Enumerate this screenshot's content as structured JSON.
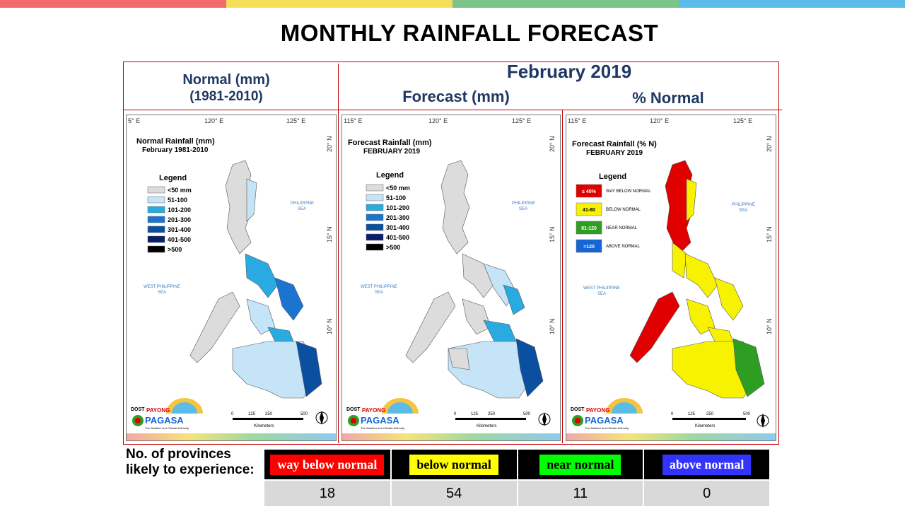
{
  "header": {
    "title": "MONTHLY RAINFALL FORECAST"
  },
  "colors": {
    "top_bar": [
      "#f26b6b",
      "#f5de5a",
      "#7cc48a",
      "#5dbbe8"
    ],
    "frame": "#c00000",
    "heading": "#1f3864"
  },
  "columns": {
    "normal_heading": "Normal (mm)",
    "normal_period": "(1981-2010)",
    "month": "February 2019",
    "forecast_heading": "Forecast (mm)",
    "percent_heading": "% Normal"
  },
  "maps": {
    "normal": {
      "title": "Normal Rainfall (mm)",
      "subtitle": "February 1981-2010",
      "lon_labels": [
        "5° E",
        "120° E",
        "125° E"
      ],
      "lat_labels": [
        "20° N",
        "15° N",
        "10° N"
      ],
      "legend_title": "Legend",
      "legend": [
        {
          "label": "<50 mm",
          "color": "#dcdcdc"
        },
        {
          "label": "51-100",
          "color": "#c5e4f7"
        },
        {
          "label": "101-200",
          "color": "#29abe2"
        },
        {
          "label": "201-300",
          "color": "#1b75d0"
        },
        {
          "label": "301-400",
          "color": "#0b4fa0"
        },
        {
          "label": "401-500",
          "color": "#0a1f6b"
        },
        {
          "label": ">500",
          "color": "#000000"
        }
      ],
      "sea_1": "PHILIPPINE",
      "sea_1b": "SEA",
      "sea_2": "WEST PHILIPPINE",
      "sea_2b": "SEA",
      "scale_ticks": [
        "0",
        "125",
        "250",
        "500"
      ],
      "scale_unit": "Kilometers"
    },
    "forecast": {
      "title": "Forecast Rainfall (mm)",
      "subtitle": "FEBRUARY 2019",
      "lon_labels": [
        "115° E",
        "120° E",
        "125° E"
      ],
      "lat_labels": [
        "20° N",
        "15° N",
        "10° N"
      ],
      "legend_title": "Legend",
      "legend": [
        {
          "label": "<50 mm",
          "color": "#dcdcdc"
        },
        {
          "label": "51-100",
          "color": "#c5e4f7"
        },
        {
          "label": "101-200",
          "color": "#29abe2"
        },
        {
          "label": "201-300",
          "color": "#1b75d0"
        },
        {
          "label": "301-400",
          "color": "#0b4fa0"
        },
        {
          "label": "401-500",
          "color": "#0a1f6b"
        },
        {
          "label": ">500",
          "color": "#000000"
        }
      ],
      "sea_1": "PHILIPPINE",
      "sea_1b": "SEA",
      "sea_2": "WEST PHILIPPINE",
      "sea_2b": "SEA",
      "scale_ticks": [
        "0",
        "125",
        "250",
        "500"
      ],
      "scale_unit": "Kilometers"
    },
    "percent": {
      "title": "Forecast Rainfall (% N)",
      "subtitle": "FEBRUARY 2019",
      "lon_labels": [
        "115° E",
        "120° E",
        "125° E"
      ],
      "lat_labels": [
        "20° N",
        "15° N",
        "10° N"
      ],
      "legend_title": "Legend",
      "legend": [
        {
          "swatch": "≤ 40%",
          "label": "WAY BELOW NORMAL",
          "color": "#e00000",
          "text_color": "#ffffff"
        },
        {
          "swatch": "41-80",
          "label": "BELOW NORMAL",
          "color": "#f7f200",
          "text_color": "#000000"
        },
        {
          "swatch": "81-120",
          "label": "NEAR NORMAL",
          "color": "#2e9e23",
          "text_color": "#ffffff"
        },
        {
          "swatch": ">120",
          "label": "ABOVE NORMAL",
          "color": "#1565d8",
          "text_color": "#ffffff"
        }
      ],
      "sea_1": "PHILIPPINE",
      "sea_1b": "SEA",
      "sea_2": "WEST PHILIPPINE",
      "sea_2b": "SEA",
      "scale_ticks": [
        "0",
        "125",
        "250",
        "500"
      ],
      "scale_unit": "Kilometers"
    }
  },
  "logo": {
    "top": "DOST",
    "payong": "PAYONG",
    "name": "PAGASA",
    "tagline": "The Weather and Climate Authority"
  },
  "provinces": {
    "label": "No. of provinces likely to experience:",
    "categories": [
      {
        "label": "way below normal",
        "bg": "#ff0000",
        "fg": "#ffffff",
        "count": "18"
      },
      {
        "label": "below normal",
        "bg": "#ffff00",
        "fg": "#000000",
        "count": "54"
      },
      {
        "label": "near normal",
        "bg": "#00ff00",
        "fg": "#000000",
        "count": "11"
      },
      {
        "label": "above normal",
        "bg": "#3333ff",
        "fg": "#ffffff",
        "count": "0"
      }
    ]
  }
}
